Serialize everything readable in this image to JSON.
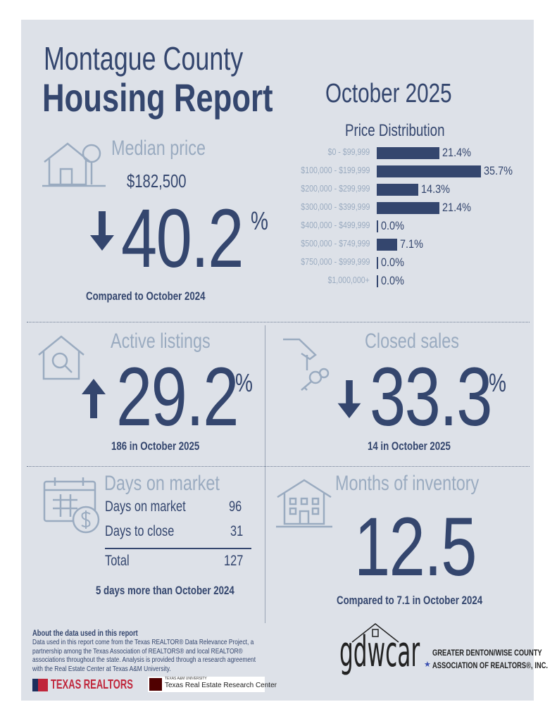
{
  "header": {
    "county": "Montague County",
    "title": "Housing Report",
    "period": "October 2025"
  },
  "median": {
    "label": "Median price",
    "price": "$182,500",
    "direction": "down",
    "change": "40.2",
    "pct": "%",
    "compare": "Compared to October 2024"
  },
  "price_distribution": {
    "title": "Price Distribution",
    "rows": [
      {
        "label": "$0 - $99,999",
        "value": 21.4,
        "text": "21.4%"
      },
      {
        "label": "$100,000 - $199,999",
        "value": 35.7,
        "text": "35.7%"
      },
      {
        "label": "$200,000 - $299,999",
        "value": 14.3,
        "text": "14.3%"
      },
      {
        "label": "$300,000 - $399,999",
        "value": 21.4,
        "text": "21.4%"
      },
      {
        "label": "$400,000 - $499,999",
        "value": 0.0,
        "text": "0.0%"
      },
      {
        "label": "$500,000 - $749,999",
        "value": 7.1,
        "text": "7.1%"
      },
      {
        "label": "$750,000 - $999,999",
        "value": 0.0,
        "text": "0.0%"
      },
      {
        "label": "$1,000,000+",
        "value": 0.0,
        "text": "0.0%"
      }
    ]
  },
  "active": {
    "label": "Active listings",
    "direction": "up",
    "change": "29.2",
    "pct": "%",
    "note": "186 in October 2025"
  },
  "closed": {
    "label": "Closed sales",
    "direction": "down",
    "change": "33.3",
    "pct": "%",
    "note": "14 in October 2025"
  },
  "dom": {
    "label": "Days on market",
    "rows": [
      {
        "label": "Days on market",
        "value": "96"
      },
      {
        "label": "Days to close",
        "value": "31"
      }
    ],
    "total_label": "Total",
    "total_value": "127",
    "note": "5 days more than October 2024"
  },
  "moi": {
    "label": "Months of inventory",
    "value": "12.5",
    "note": "Compared to 7.1 in October 2024"
  },
  "footer": {
    "about_title": "About the data used in this report",
    "about_text": "Data used in this report come from the Texas REALTOR® Data Relevance Project, a partnership among the Texas Association of REALTORS® and local REALTOR® associations throughout the state. Analysis is provided through a research agreement with the Real Estate Center at Texas A&M University.",
    "texas_realtors": "TEXAS REALTORS",
    "tamu_small": "TEXAS A&M UNIVERSITY",
    "tamu": "Texas Real Estate Research Center",
    "gdwcar": "gdwcar",
    "gdwcar_line1": "GREATER DENTON/WISE COUNTY",
    "gdwcar_line2": "ASSOCIATION OF REALTORS®, INC."
  },
  "colors": {
    "navy": "#34466e",
    "light": "#9aabc0",
    "panel": "#dde1e8"
  }
}
